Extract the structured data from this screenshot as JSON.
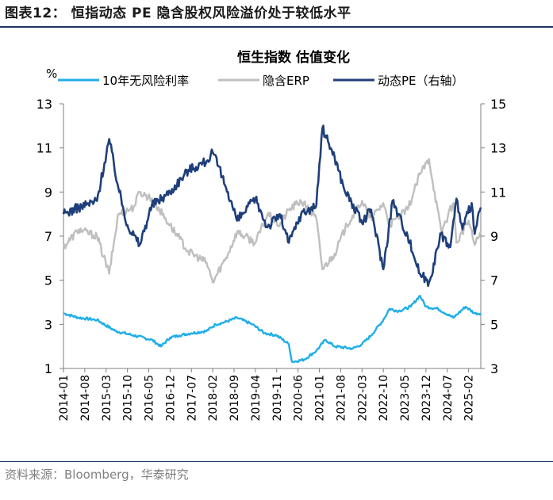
{
  "figure": {
    "title": "图表12：  恒指动态 PE 隐含股权风险溢价处于较低水平",
    "source": "资料来源：Bloomberg，华泰研究"
  },
  "chart_data": {
    "type": "line",
    "title": "恒生指数 估值变化",
    "y_unit": "%",
    "ylim_left": [
      1,
      13
    ],
    "yticks_left": [
      "1",
      "3",
      "5",
      "7",
      "9",
      "11",
      "13"
    ],
    "ylim_right": [
      3,
      15
    ],
    "yticks_right": [
      "3",
      "5",
      "7",
      "9",
      "11",
      "13",
      "15"
    ],
    "x_range": [
      "2014-01",
      "2025-06"
    ],
    "x_ticks": [
      "2014-01",
      "2014-08",
      "2015-03",
      "2015-10",
      "2016-05",
      "2016-12",
      "2017-07",
      "2018-02",
      "2018-09",
      "2019-04",
      "2019-11",
      "2020-06",
      "2021-01",
      "2021-08",
      "2022-03",
      "2022-10",
      "2023-05",
      "2023-12",
      "2024-07",
      "2025-02"
    ],
    "series": [
      {
        "name": "10年无风险利率",
        "axis": "left",
        "color": "#20aee8",
        "points": [
          [
            "2014-01",
            3.5
          ],
          [
            "2014-06",
            3.3
          ],
          [
            "2014-12",
            3.2
          ],
          [
            "2015-06",
            2.7
          ],
          [
            "2015-12",
            2.5
          ],
          [
            "2016-06",
            2.3
          ],
          [
            "2016-09",
            2.0
          ],
          [
            "2016-12",
            2.4
          ],
          [
            "2017-03",
            2.5
          ],
          [
            "2017-07",
            2.6
          ],
          [
            "2017-12",
            2.7
          ],
          [
            "2018-03",
            3.0
          ],
          [
            "2018-06",
            3.1
          ],
          [
            "2018-10",
            3.3
          ],
          [
            "2019-03",
            3.0
          ],
          [
            "2019-07",
            2.6
          ],
          [
            "2019-11",
            2.5
          ],
          [
            "2020-03",
            2.1
          ],
          [
            "2020-04",
            1.3
          ],
          [
            "2020-08",
            1.4
          ],
          [
            "2020-12",
            1.8
          ],
          [
            "2021-03",
            2.3
          ],
          [
            "2021-06",
            2.0
          ],
          [
            "2021-12",
            1.9
          ],
          [
            "2022-03",
            2.1
          ],
          [
            "2022-06",
            2.5
          ],
          [
            "2022-10",
            3.2
          ],
          [
            "2022-12",
            3.7
          ],
          [
            "2023-03",
            3.6
          ],
          [
            "2023-07",
            3.8
          ],
          [
            "2023-10",
            4.3
          ],
          [
            "2023-12",
            3.8
          ],
          [
            "2024-04",
            3.7
          ],
          [
            "2024-09",
            3.3
          ],
          [
            "2025-01",
            3.8
          ],
          [
            "2025-04",
            3.5
          ],
          [
            "2025-06",
            3.5
          ]
        ]
      },
      {
        "name": "隐含ERP",
        "axis": "left",
        "color": "#bfbfbf",
        "points": [
          [
            "2014-01",
            6.5
          ],
          [
            "2014-06",
            7.3
          ],
          [
            "2014-12",
            7.0
          ],
          [
            "2015-04",
            5.3
          ],
          [
            "2015-07",
            8.0
          ],
          [
            "2015-12",
            8.3
          ],
          [
            "2016-02",
            9.0
          ],
          [
            "2016-06",
            8.7
          ],
          [
            "2016-12",
            7.5
          ],
          [
            "2017-06",
            6.3
          ],
          [
            "2017-12",
            5.8
          ],
          [
            "2018-02",
            4.9
          ],
          [
            "2018-07",
            6.2
          ],
          [
            "2018-10",
            7.2
          ],
          [
            "2019-04",
            6.7
          ],
          [
            "2019-08",
            8.0
          ],
          [
            "2019-12",
            7.5
          ],
          [
            "2020-03",
            8.2
          ],
          [
            "2020-07",
            8.6
          ],
          [
            "2020-12",
            7.8
          ],
          [
            "2021-02",
            5.5
          ],
          [
            "2021-06",
            6.2
          ],
          [
            "2021-10",
            7.5
          ],
          [
            "2022-03",
            8.6
          ],
          [
            "2022-06",
            7.8
          ],
          [
            "2022-10",
            8.5
          ],
          [
            "2022-12",
            7.5
          ],
          [
            "2023-06",
            8.2
          ],
          [
            "2023-10",
            9.8
          ],
          [
            "2024-01",
            10.5
          ],
          [
            "2024-05",
            7.2
          ],
          [
            "2024-09",
            8.5
          ],
          [
            "2024-10",
            6.7
          ],
          [
            "2025-02",
            7.7
          ],
          [
            "2025-04",
            6.6
          ],
          [
            "2025-06",
            7.2
          ]
        ]
      },
      {
        "name": "动态PE（右轴）",
        "axis": "right",
        "color": "#1f3f7a",
        "points": [
          [
            "2014-01",
            10.0
          ],
          [
            "2014-06",
            10.3
          ],
          [
            "2014-12",
            10.6
          ],
          [
            "2015-04",
            13.4
          ],
          [
            "2015-07",
            11.2
          ],
          [
            "2015-10",
            9.5
          ],
          [
            "2016-02",
            8.6
          ],
          [
            "2016-06",
            10.4
          ],
          [
            "2016-12",
            11.0
          ],
          [
            "2017-06",
            12.0
          ],
          [
            "2017-12",
            12.4
          ],
          [
            "2018-02",
            12.8
          ],
          [
            "2018-07",
            11.0
          ],
          [
            "2018-10",
            9.7
          ],
          [
            "2019-04",
            10.7
          ],
          [
            "2019-08",
            9.4
          ],
          [
            "2019-12",
            10.0
          ],
          [
            "2020-03",
            8.7
          ],
          [
            "2020-07",
            10.0
          ],
          [
            "2020-12",
            10.4
          ],
          [
            "2021-02",
            13.9
          ],
          [
            "2021-06",
            12.6
          ],
          [
            "2021-09",
            11.2
          ],
          [
            "2022-03",
            9.6
          ],
          [
            "2022-06",
            10.2
          ],
          [
            "2022-10",
            7.5
          ],
          [
            "2023-01",
            10.6
          ],
          [
            "2023-06",
            9.0
          ],
          [
            "2023-10",
            7.3
          ],
          [
            "2024-01",
            6.9
          ],
          [
            "2024-05",
            9.1
          ],
          [
            "2024-08",
            8.5
          ],
          [
            "2024-10",
            10.7
          ],
          [
            "2024-12",
            9.3
          ],
          [
            "2025-03",
            10.5
          ],
          [
            "2025-04",
            9.1
          ],
          [
            "2025-06",
            10.3
          ]
        ]
      }
    ]
  }
}
